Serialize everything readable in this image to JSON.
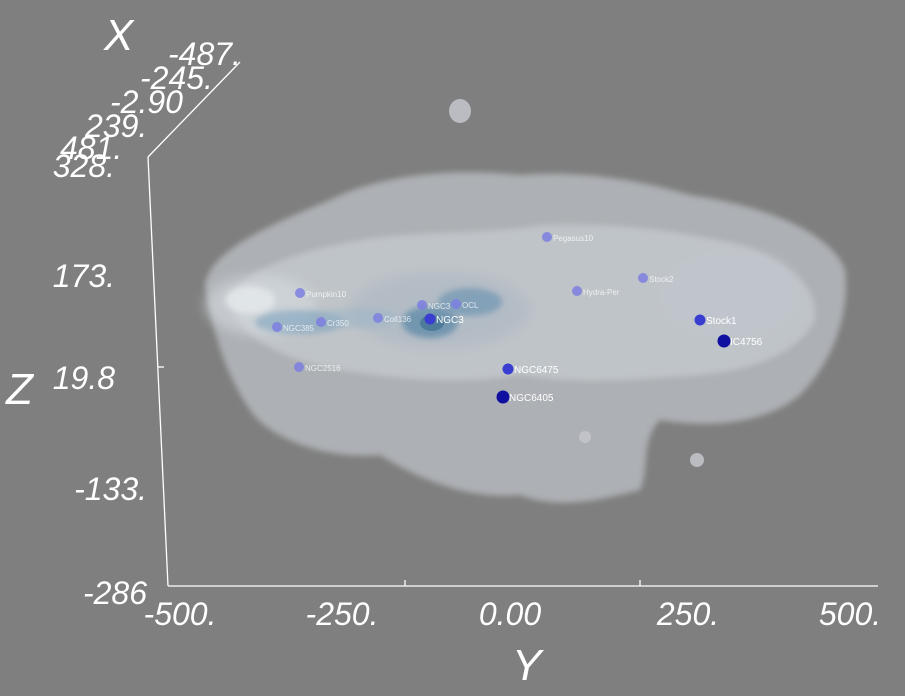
{
  "axes": {
    "x_title": "X",
    "y_title": "Y",
    "z_title": "Z",
    "x_ticks": [
      "-487.",
      "-245.",
      "-2.90",
      "239.",
      "481."
    ],
    "y_ticks": [
      "-500.",
      "-250.",
      "0.00",
      "250.",
      "500."
    ],
    "z_ticks": [
      "328.",
      "173.",
      "19.8",
      "-133.",
      "-286"
    ]
  },
  "points": [
    {
      "label": "Pumpkin10",
      "level": "light"
    },
    {
      "label": "Pegasus10",
      "level": "light"
    },
    {
      "label": "Stock2",
      "level": "light"
    },
    {
      "label": "Hydra-Per",
      "level": "light"
    },
    {
      "label": "NGC3",
      "level": "light"
    },
    {
      "label": "OCL",
      "level": "light"
    },
    {
      "label": "NGC3",
      "level": "medium"
    },
    {
      "label": "NGC385",
      "level": "light"
    },
    {
      "label": "Coll136",
      "level": "light"
    },
    {
      "label": "Cr350",
      "level": "light"
    },
    {
      "label": "NGC2516",
      "level": "light"
    },
    {
      "label": "Stock1",
      "level": "medium"
    },
    {
      "label": "IC4756",
      "level": "dark"
    },
    {
      "label": "NGC6475",
      "level": "medium"
    },
    {
      "label": "NGC6405",
      "level": "dark"
    }
  ],
  "colors": {
    "background": "#7f7f7f",
    "axis_text": "#ffffff",
    "point_light": "#7d7fe0",
    "point_medium": "#3a3ed0",
    "point_dark": "#1010a0"
  }
}
